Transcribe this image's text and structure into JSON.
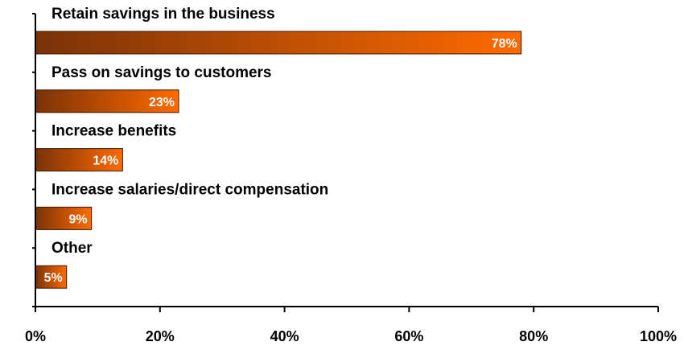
{
  "chart_data": {
    "type": "bar",
    "orientation": "horizontal",
    "categories": [
      "Retain savings in the business",
      "Pass on savings to customers",
      "Increase benefits",
      "Increase salaries/direct compensation",
      "Other"
    ],
    "values": [
      78,
      23,
      14,
      9,
      5
    ],
    "data_labels": [
      "78%",
      "23%",
      "14%",
      "9%",
      "5%"
    ],
    "xlim": [
      0,
      100
    ],
    "x_ticks": [
      0,
      20,
      40,
      60,
      80,
      100
    ],
    "x_tick_labels": [
      "0%",
      "20%",
      "40%",
      "60%",
      "80%",
      "100%"
    ],
    "grid": false,
    "legend": "none",
    "colors": {
      "bar_gradient_start": "#7a3208",
      "bar_gradient_end": "#ff6a00",
      "bar_border": "#3a1a05",
      "axis": "#000000",
      "label_text": "#000000",
      "data_label_text": "#ffffff"
    }
  }
}
